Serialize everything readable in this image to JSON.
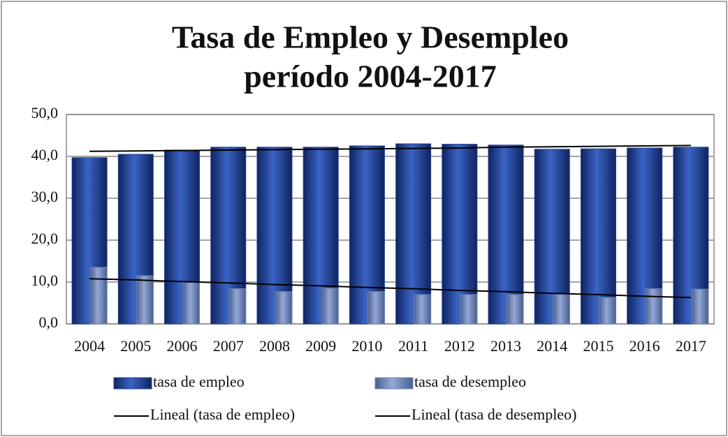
{
  "chart_data": {
    "type": "bar",
    "title": [
      "Tasa de Empleo y Desempleo",
      "período 2004-2017"
    ],
    "categories": [
      "2004",
      "2005",
      "2006",
      "2007",
      "2008",
      "2009",
      "2010",
      "2011",
      "2012",
      "2013",
      "2014",
      "2015",
      "2016",
      "2017"
    ],
    "series": [
      {
        "name": "tasa de empleo",
        "type": "bar",
        "color": "#23428f",
        "values": [
          39.7,
          40.5,
          41.5,
          42.2,
          42.2,
          42.2,
          42.5,
          43.0,
          42.9,
          42.7,
          41.7,
          41.8,
          42.0,
          42.2
        ]
      },
      {
        "name": "tasa de desempleo",
        "type": "bar",
        "color": "#6f86b8",
        "values": [
          13.5,
          11.5,
          9.9,
          8.4,
          7.7,
          8.5,
          7.7,
          7.0,
          7.0,
          7.0,
          7.2,
          6.3,
          8.4,
          8.3
        ]
      },
      {
        "name": "Lineal (tasa de empleo)",
        "type": "line",
        "color": "#000000",
        "values": [
          41.2,
          41.3,
          41.4,
          41.5,
          41.6,
          41.7,
          41.8,
          41.9,
          42.0,
          42.2,
          42.3,
          42.4,
          42.5,
          42.6
        ]
      },
      {
        "name": "Lineal (tasa de desempleo)",
        "type": "line",
        "color": "#000000",
        "values": [
          10.8,
          10.5,
          10.1,
          9.8,
          9.4,
          9.1,
          8.7,
          8.4,
          8.0,
          7.7,
          7.3,
          7.0,
          6.6,
          6.3
        ]
      }
    ],
    "ylim": [
      0,
      50
    ],
    "yticks": [
      {
        "value": 0,
        "label": "0,0"
      },
      {
        "value": 10,
        "label": "10,0"
      },
      {
        "value": 20,
        "label": "20,0"
      },
      {
        "value": 30,
        "label": "30,0"
      },
      {
        "value": 40,
        "label": "40,0"
      },
      {
        "value": 50,
        "label": "50,0"
      }
    ],
    "grid": true
  }
}
